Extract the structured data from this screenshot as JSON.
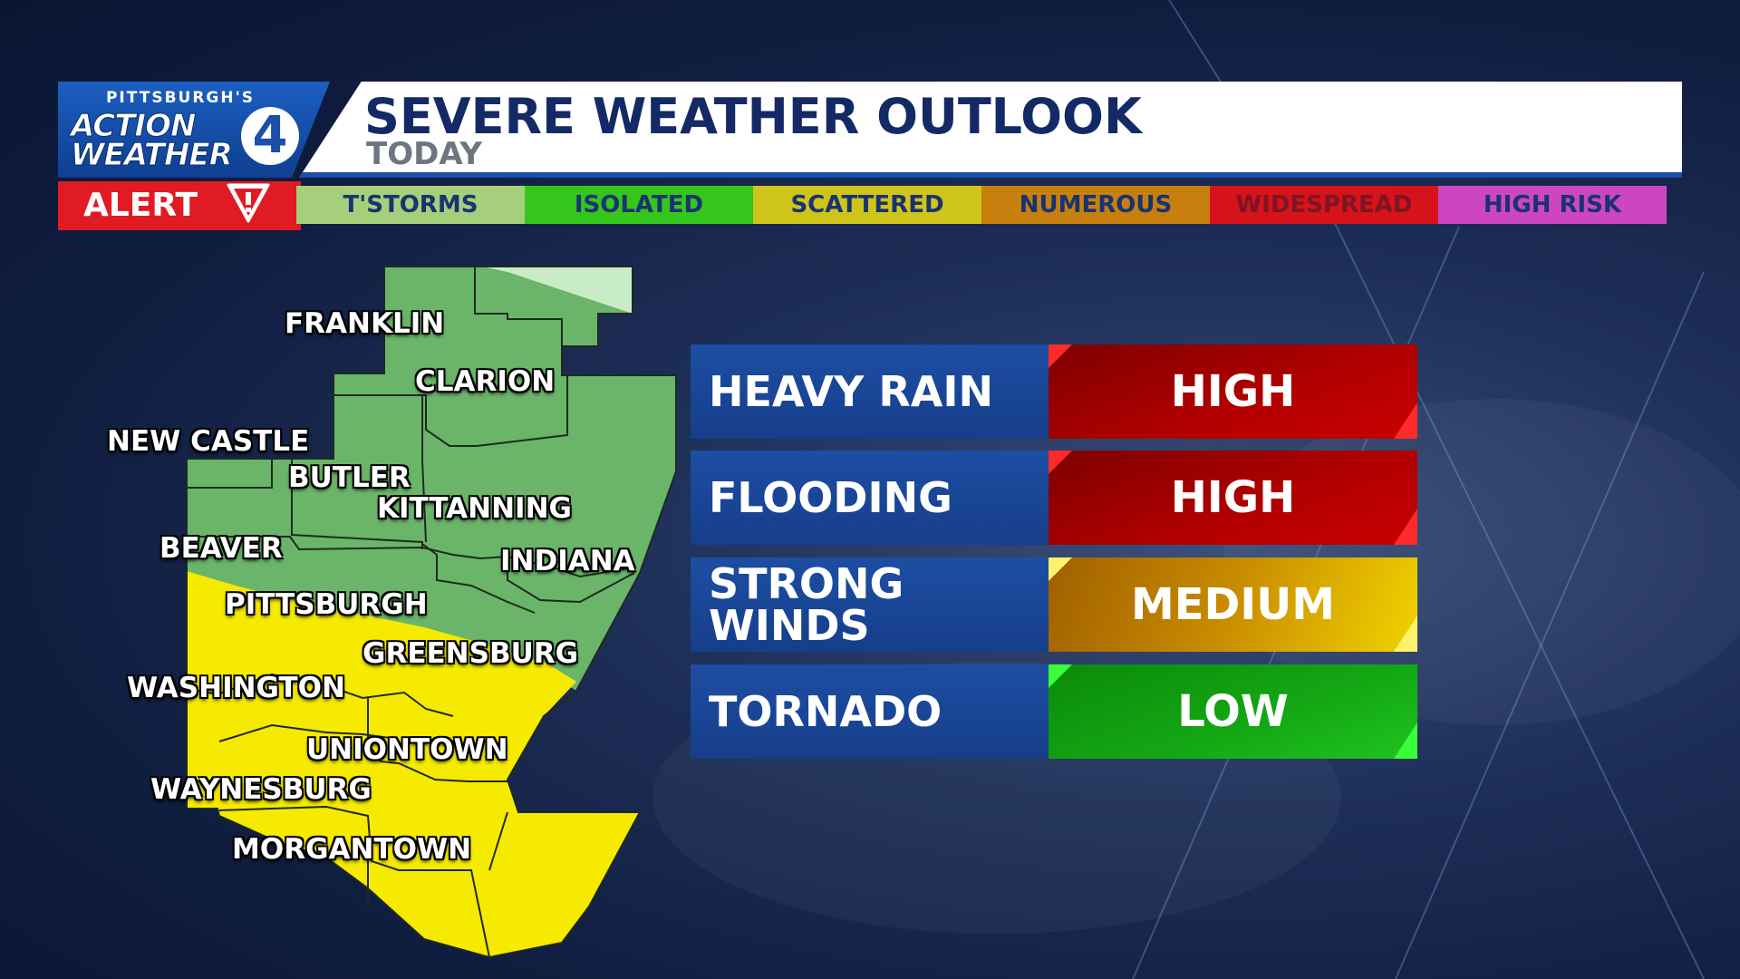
{
  "header": {
    "logo_top": "PITTSBURGH'S",
    "logo_line1": "ACTION",
    "logo_line2": "WEATHER",
    "logo_number": "4",
    "title": "SEVERE WEATHER OUTLOOK",
    "subtitle": "TODAY"
  },
  "alert": {
    "label": "ALERT",
    "icon": "warning-icon"
  },
  "scale": [
    {
      "label": "T'STORMS",
      "bg": "#a5cf7a",
      "fg": "#1a3370"
    },
    {
      "label": "ISOLATED",
      "bg": "#34c61b",
      "fg": "#1a3370"
    },
    {
      "label": "SCATTERED",
      "bg": "#cfc41a",
      "fg": "#1a3370"
    },
    {
      "label": "NUMEROUS",
      "bg": "#c77f0e",
      "fg": "#1a3370"
    },
    {
      "label": "WIDESPREAD",
      "bg": "#d6121a",
      "fg": "#7e1424"
    },
    {
      "label": "HIGH RISK",
      "bg": "#cc46c2",
      "fg": "#1a3370"
    }
  ],
  "map": {
    "colors": {
      "tstorm": "#6ab56a",
      "scattered": "#f5ea00",
      "light": "#c8ebc8",
      "border": "#1f2a1f"
    },
    "cities": [
      {
        "key": "franklin",
        "name": "FRANKLIN"
      },
      {
        "key": "clarion",
        "name": "CLARION"
      },
      {
        "key": "new_castle",
        "name": "NEW CASTLE"
      },
      {
        "key": "butler",
        "name": "BUTLER"
      },
      {
        "key": "kittanning",
        "name": "KITTANNING"
      },
      {
        "key": "beaver",
        "name": "BEAVER"
      },
      {
        "key": "indiana",
        "name": "INDIANA"
      },
      {
        "key": "pittsburgh",
        "name": "PITTSBURGH"
      },
      {
        "key": "greensburg",
        "name": "GREENSBURG"
      },
      {
        "key": "washington",
        "name": "WASHINGTON"
      },
      {
        "key": "uniontown",
        "name": "UNIONTOWN"
      },
      {
        "key": "waynesburg",
        "name": "WAYNESBURG"
      },
      {
        "key": "morgantown",
        "name": "MORGANTOWN"
      }
    ]
  },
  "threats": [
    {
      "name": "HEAVY RAIN",
      "level": "HIGH",
      "class": "level-high",
      "corner": "#ff2a2a"
    },
    {
      "name": "FLOODING",
      "level": "HIGH",
      "class": "level-high",
      "corner": "#ff2a2a"
    },
    {
      "name": "STRONG WINDS",
      "level": "MEDIUM",
      "class": "level-medium",
      "corner": "#fff26a"
    },
    {
      "name": "TORNADO",
      "level": "LOW",
      "class": "level-low",
      "corner": "#39ff39"
    }
  ]
}
